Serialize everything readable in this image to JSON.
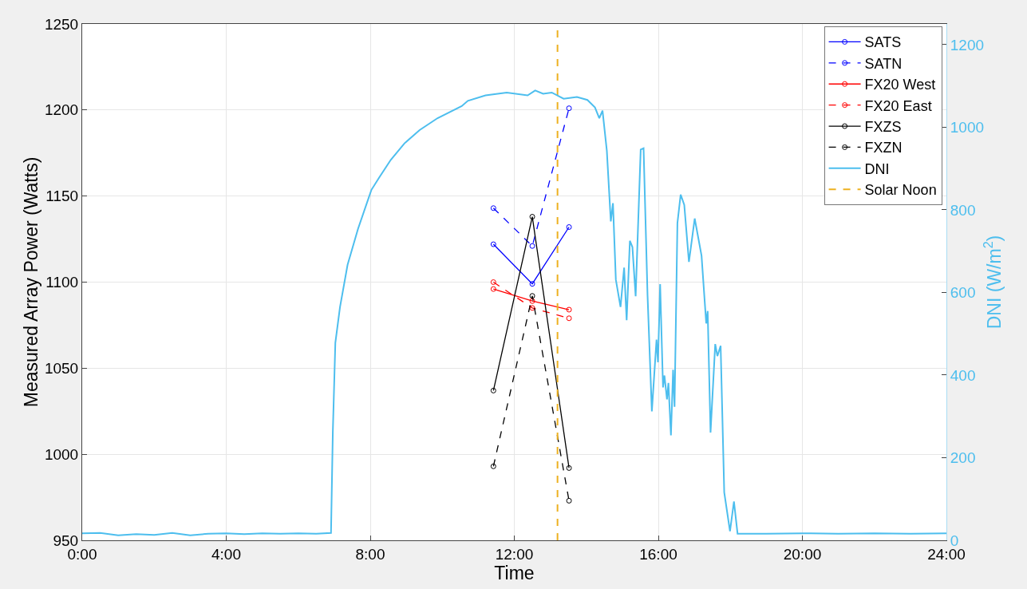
{
  "chart_data": {
    "type": "line",
    "xlabel": "Time",
    "ylabel": "Measured Array Power (Watts)",
    "y2label": "DNI (W/m$^{2}$)",
    "xlim": [
      0,
      24
    ],
    "xticks": [
      {
        "value": 0,
        "label": "0:00"
      },
      {
        "value": 4,
        "label": "4:00"
      },
      {
        "value": 8,
        "label": "8:00"
      },
      {
        "value": 12,
        "label": "12:00"
      },
      {
        "value": 16,
        "label": "16:00"
      },
      {
        "value": 20,
        "label": "20:00"
      },
      {
        "value": 24,
        "label": "24:00"
      }
    ],
    "ylim": [
      950,
      1250
    ],
    "yticks": [
      950,
      1000,
      1050,
      1100,
      1150,
      1200,
      1250
    ],
    "y2lim": [
      0,
      1250
    ],
    "y2ticks": [
      0,
      200,
      400,
      600,
      800,
      1000,
      1200
    ],
    "grid": true,
    "legend": "top right",
    "series": [
      {
        "name": "SATS",
        "color": "#0000ff",
        "marker": "circle",
        "line_style": "solid",
        "x": [
          11.42,
          12.5,
          13.52
        ],
        "values": [
          1122,
          1099,
          1132
        ]
      },
      {
        "name": "SATN",
        "color": "#0000ff",
        "marker": "circle",
        "line_style": "dashed",
        "x": [
          11.42,
          12.5,
          13.52
        ],
        "values": [
          1143,
          1121,
          1201
        ]
      },
      {
        "name": "FX20 West",
        "color": "#ff0000",
        "marker": "circle",
        "line_style": "solid",
        "x": [
          11.42,
          12.5,
          13.52
        ],
        "values": [
          1096,
          1089,
          1084
        ]
      },
      {
        "name": "FX20 East",
        "color": "#ff0000",
        "marker": "circle",
        "line_style": "dashed",
        "x": [
          11.42,
          12.5,
          13.52
        ],
        "values": [
          1100,
          1085,
          1079
        ]
      },
      {
        "name": "FXZS",
        "color": "#000000",
        "marker": "circle",
        "line_style": "solid",
        "x": [
          11.42,
          12.5,
          13.52
        ],
        "values": [
          1037,
          1138,
          992
        ]
      },
      {
        "name": "FXZN",
        "color": "#000000",
        "marker": "circle",
        "line_style": "dashed",
        "x": [
          11.42,
          12.5,
          13.52
        ],
        "values": [
          993,
          1092,
          973
        ]
      },
      {
        "name": "DNI",
        "color": "#4dbeee",
        "marker": "none",
        "line_style": "solid",
        "axis": "y2",
        "x": [
          0,
          0.5,
          1,
          1.5,
          2,
          2.5,
          3,
          3.5,
          4,
          4.5,
          5,
          5.5,
          6,
          6.5,
          6.91,
          6.96,
          7.03,
          7.16,
          7.37,
          7.66,
          8.03,
          8.24,
          8.57,
          8.95,
          9.37,
          9.87,
          10.54,
          10.71,
          11.2,
          11.79,
          12.37,
          12.58,
          12.8,
          13.04,
          13.37,
          13.74,
          14.03,
          14.24,
          14.36,
          14.45,
          14.57,
          14.68,
          14.74,
          14.82,
          14.95,
          15.05,
          15.12,
          15.21,
          15.28,
          15.37,
          15.51,
          15.59,
          15.7,
          15.82,
          15.95,
          15.99,
          16.05,
          16.13,
          16.17,
          16.24,
          16.28,
          16.35,
          16.41,
          16.45,
          16.53,
          16.62,
          16.72,
          16.85,
          17.01,
          17.2,
          17.33,
          17.37,
          17.45,
          17.58,
          17.64,
          17.73,
          17.83,
          17.99,
          18.1,
          18.2,
          19,
          20,
          21,
          22,
          23,
          24
        ],
        "values": [
          17,
          18,
          12,
          15,
          13,
          18,
          12,
          16,
          17,
          15,
          17,
          16,
          17,
          16,
          18,
          261,
          478,
          565,
          667,
          754,
          848,
          877,
          921,
          961,
          993,
          1022,
          1051,
          1064,
          1077,
          1084,
          1077,
          1089,
          1081,
          1084,
          1069,
          1073,
          1066,
          1048,
          1022,
          1040,
          943,
          772,
          816,
          631,
          565,
          660,
          533,
          725,
          710,
          591,
          946,
          949,
          594,
          312,
          486,
          431,
          620,
          370,
          399,
          341,
          381,
          254,
          413,
          323,
          768,
          837,
          812,
          674,
          779,
          689,
          525,
          555,
          261,
          475,
          446,
          471,
          116,
          22,
          94,
          16,
          16,
          17,
          16,
          17,
          16,
          17
        ]
      },
      {
        "name": "Solar Noon",
        "color": "#edb120",
        "marker": "none",
        "line_style": "dashed",
        "x": [
          13.2,
          13.2
        ],
        "values": [
          950,
          1250
        ]
      }
    ]
  }
}
